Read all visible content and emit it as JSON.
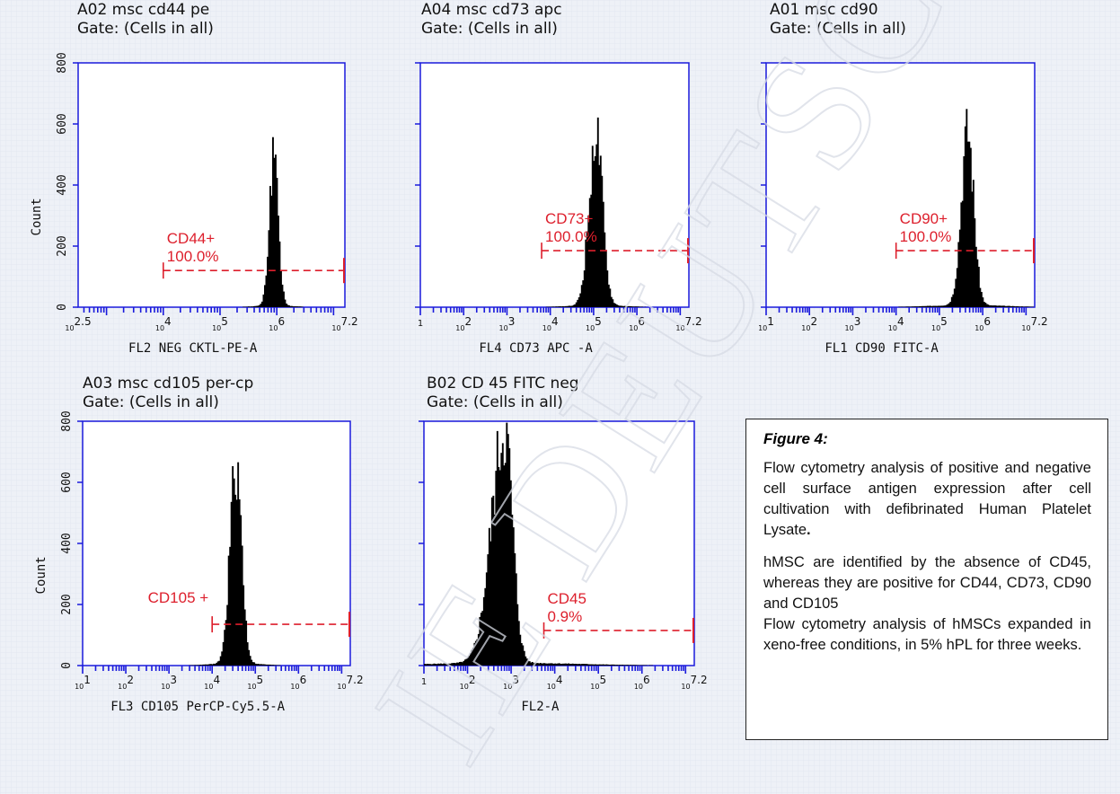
{
  "watermark_text": "IE DEUTSCHE",
  "panels": [
    {
      "id": "A02",
      "title": "A02 msc cd44 pe",
      "gate": "Gate: (Cells in all)",
      "xlabel": "FL2 NEG CKTL-PE-A",
      "ylabel": "Count",
      "y_ticks": [
        "0",
        "200",
        "400",
        "600",
        "800"
      ],
      "x_ticks": [
        {
          "base": "10",
          "exp": "2.5",
          "v": 2.5
        },
        {
          "base": "10",
          "exp": "4",
          "v": 4
        },
        {
          "base": "10",
          "exp": "5",
          "v": 5
        },
        {
          "base": "10",
          "exp": "6",
          "v": 6
        },
        {
          "base": "10",
          "exp": "7.2",
          "v": 7.2
        }
      ],
      "x_range": [
        2.5,
        7.2
      ],
      "gate_label": "CD44+",
      "gate_pct": "100.0%",
      "gate_range": [
        4.0,
        7.2
      ],
      "gate_level": 120,
      "hist": {
        "center": 5.95,
        "sigma": 0.075,
        "peak": 505,
        "tailSigma": 0.1
      }
    },
    {
      "id": "A04",
      "title": "A04 msc cd73 apc",
      "gate": "Gate: (Cells in all)",
      "xlabel": "FL4 CD73 APC -A",
      "ylabel": "",
      "y_ticks": [],
      "x_ticks": [
        {
          "base": "",
          "exp": "",
          "v": 1,
          "raw": "1"
        },
        {
          "base": "10",
          "exp": "2",
          "v": 2
        },
        {
          "base": "10",
          "exp": "3",
          "v": 3
        },
        {
          "base": "10",
          "exp": "4",
          "v": 4
        },
        {
          "base": "10",
          "exp": "5",
          "v": 5
        },
        {
          "base": "10",
          "exp": "6",
          "v": 6
        },
        {
          "base": "10",
          "exp": "7.2",
          "v": 7.2
        }
      ],
      "x_range": [
        1,
        7.2
      ],
      "gate_label": "CD73+",
      "gate_pct": "100.0%",
      "gate_range": [
        3.8,
        7.2
      ],
      "gate_level": 185,
      "hist": {
        "center": 5.05,
        "sigma": 0.15,
        "peak": 555,
        "tailSigma": 0.2
      }
    },
    {
      "id": "A01",
      "title": "A01 msc cd90",
      "gate": "Gate: (Cells in all)",
      "xlabel": "FL1 CD90 FITC-A",
      "ylabel": "",
      "y_ticks": [],
      "x_ticks": [
        {
          "base": "10",
          "exp": "1",
          "v": 1
        },
        {
          "base": "10",
          "exp": "2",
          "v": 2
        },
        {
          "base": "10",
          "exp": "3",
          "v": 3
        },
        {
          "base": "10",
          "exp": "4",
          "v": 4
        },
        {
          "base": "10",
          "exp": "5",
          "v": 5
        },
        {
          "base": "10",
          "exp": "6",
          "v": 6
        },
        {
          "base": "10",
          "exp": "7.2",
          "v": 7.2
        }
      ],
      "x_range": [
        1,
        7.2
      ],
      "gate_label": "CD90+",
      "gate_pct": "100.0%",
      "gate_range": [
        4.0,
        7.2
      ],
      "gate_level": 185,
      "hist": {
        "center": 5.65,
        "sigma": 0.14,
        "peak": 570,
        "tailSigma": 0.28
      }
    },
    {
      "id": "A03",
      "title": "A03 msc cd105 per-cp",
      "gate": "Gate: (Cells in all)",
      "xlabel": "FL3 CD105  PerCP-Cy5.5-A",
      "ylabel": "Count",
      "y_ticks": [
        "0",
        "200",
        "400",
        "600",
        "800"
      ],
      "x_ticks": [
        {
          "base": "10",
          "exp": "1",
          "v": 1
        },
        {
          "base": "10",
          "exp": "2",
          "v": 2
        },
        {
          "base": "10",
          "exp": "3",
          "v": 3
        },
        {
          "base": "10",
          "exp": "4",
          "v": 4
        },
        {
          "base": "10",
          "exp": "5",
          "v": 5
        },
        {
          "base": "10",
          "exp": "6",
          "v": 6
        },
        {
          "base": "10",
          "exp": "7.2",
          "v": 7.2
        }
      ],
      "x_range": [
        1,
        7.2
      ],
      "gate_label": "CD105 +",
      "gate_pct": "",
      "gate_range": [
        4.0,
        7.2
      ],
      "gate_level": 135,
      "hist": {
        "center": 4.55,
        "sigma": 0.13,
        "peak": 655,
        "tailSigma": 0.18
      }
    },
    {
      "id": "B02",
      "title": "B02 CD 45 FITC neg",
      "gate": "Gate: (Cells in all)",
      "xlabel": "FL2-A",
      "ylabel": "",
      "y_ticks": [],
      "x_ticks": [
        {
          "base": "",
          "exp": "",
          "v": 1,
          "raw": "1"
        },
        {
          "base": "10",
          "exp": "2",
          "v": 2
        },
        {
          "base": "10",
          "exp": "3",
          "v": 3
        },
        {
          "base": "10",
          "exp": "4",
          "v": 4
        },
        {
          "base": "10",
          "exp": "5",
          "v": 5
        },
        {
          "base": "10",
          "exp": "6",
          "v": 6
        },
        {
          "base": "10",
          "exp": "7.2",
          "v": 7.2
        }
      ],
      "x_range": [
        1,
        7.2
      ],
      "gate_label": "CD45",
      "gate_pct": "0.9%",
      "gate_range": [
        3.75,
        7.2
      ],
      "gate_level": 115,
      "hist": {
        "center": 2.85,
        "sigma": 0.18,
        "peak": 760,
        "tailSigma": 0.55
      }
    }
  ],
  "chart_data": [
    {
      "type": "bar",
      "title": "A02 msc cd44 pe",
      "subtitle": "Gate: (Cells in all)",
      "xlabel": "FL2 NEG CKTL-PE-A",
      "ylabel": "Count",
      "xscale": "log",
      "xlim_exp": [
        2.5,
        7.2
      ],
      "ylim": [
        0,
        800
      ],
      "peak_log10": 5.95,
      "peak_count": 505,
      "gate": {
        "name": "CD44+",
        "percent": 100.0
      }
    },
    {
      "type": "bar",
      "title": "A04 msc cd73 apc",
      "subtitle": "Gate: (Cells in all)",
      "xlabel": "FL4 CD73 APC -A",
      "ylabel": "",
      "xscale": "log",
      "xlim_exp": [
        1,
        7.2
      ],
      "ylim": [
        0,
        800
      ],
      "peak_log10": 5.05,
      "peak_count": 555,
      "gate": {
        "name": "CD73+",
        "percent": 100.0
      }
    },
    {
      "type": "bar",
      "title": "A01 msc cd90",
      "subtitle": "Gate: (Cells in all)",
      "xlabel": "FL1 CD90 FITC-A",
      "ylabel": "",
      "xscale": "log",
      "xlim_exp": [
        1,
        7.2
      ],
      "ylim": [
        0,
        800
      ],
      "peak_log10": 5.65,
      "peak_count": 570,
      "gate": {
        "name": "CD90+",
        "percent": 100.0
      }
    },
    {
      "type": "bar",
      "title": "A03 msc cd105 per-cp",
      "subtitle": "Gate: (Cells in all)",
      "xlabel": "FL3 CD105  PerCP-Cy5.5-A",
      "ylabel": "Count",
      "xscale": "log",
      "xlim_exp": [
        1,
        7.2
      ],
      "ylim": [
        0,
        800
      ],
      "peak_log10": 4.55,
      "peak_count": 655,
      "gate": {
        "name": "CD105 +"
      }
    },
    {
      "type": "bar",
      "title": "B02 CD 45 FITC neg",
      "subtitle": "Gate: (Cells in all)",
      "xlabel": "FL2-A",
      "ylabel": "",
      "xscale": "log",
      "xlim_exp": [
        1,
        7.2
      ],
      "ylim": [
        0,
        800
      ],
      "peak_log10": 2.85,
      "peak_count": 760,
      "gate": {
        "name": "CD45",
        "percent": 0.9
      }
    }
  ],
  "caption": {
    "title": "Figure 4:",
    "para1_main": "Flow cytometry analysis of positive and negative cell surface antigen expression after cell cultivation with defibrinated Human Platelet Lysate",
    "para1_end": ".",
    "para2": "hMSC are identified by the absence of CD45, whereas they are positive for CD44, CD73, CD90 and CD105",
    "para3": "Flow cytometry analysis of hMSCs expanded in xeno-free conditions, in 5% hPL for three weeks."
  },
  "colors": {
    "axis": "#1a1adc",
    "gate": "#dd1f2c",
    "bars": "#000000",
    "background": "#eef1f7"
  }
}
